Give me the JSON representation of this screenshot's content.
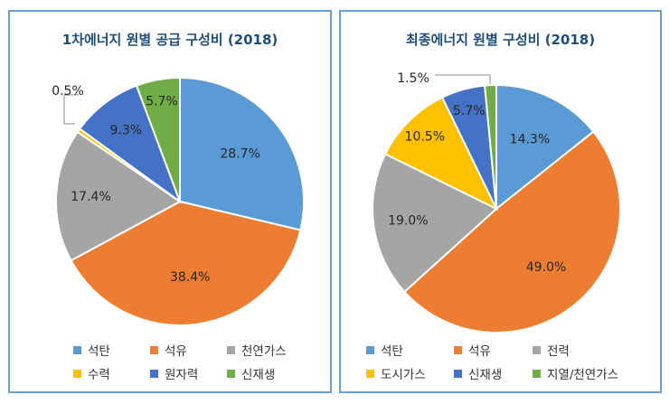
{
  "chart_data": [
    {
      "type": "pie",
      "title": "1차에너지 원별 공급 구성비 (2018)",
      "categories": [
        "석탄",
        "석유",
        "천연가스",
        "수력",
        "원자력",
        "신재생"
      ],
      "values": [
        28.7,
        38.4,
        17.4,
        0.5,
        9.3,
        5.7
      ],
      "value_labels": [
        "28.7%",
        "38.4%",
        "17.4%",
        "0.5%",
        "9.3%",
        "5.7%"
      ],
      "colors": [
        "#5b9bd5",
        "#ed7d31",
        "#a5a5a5",
        "#ffc000",
        "#4472c4",
        "#70ad47"
      ],
      "legend": "bottom",
      "start": "12 o'clock, clockwise"
    },
    {
      "type": "pie",
      "title": "최종에너지 원별 구성비 (2018)",
      "categories": [
        "석탄",
        "석유",
        "전력",
        "도시가스",
        "신재생",
        "지열/천연가스"
      ],
      "values": [
        14.3,
        49.0,
        19.0,
        10.5,
        5.7,
        1.5
      ],
      "value_labels": [
        "14.3%",
        "49.0%",
        "19.0%",
        "10.5%",
        "5.7%",
        "1.5%"
      ],
      "colors": [
        "#5b9bd5",
        "#ed7d31",
        "#a5a5a5",
        "#ffc000",
        "#4472c4",
        "#70ad47"
      ],
      "legend": "bottom",
      "start": "12 o'clock, clockwise"
    }
  ]
}
